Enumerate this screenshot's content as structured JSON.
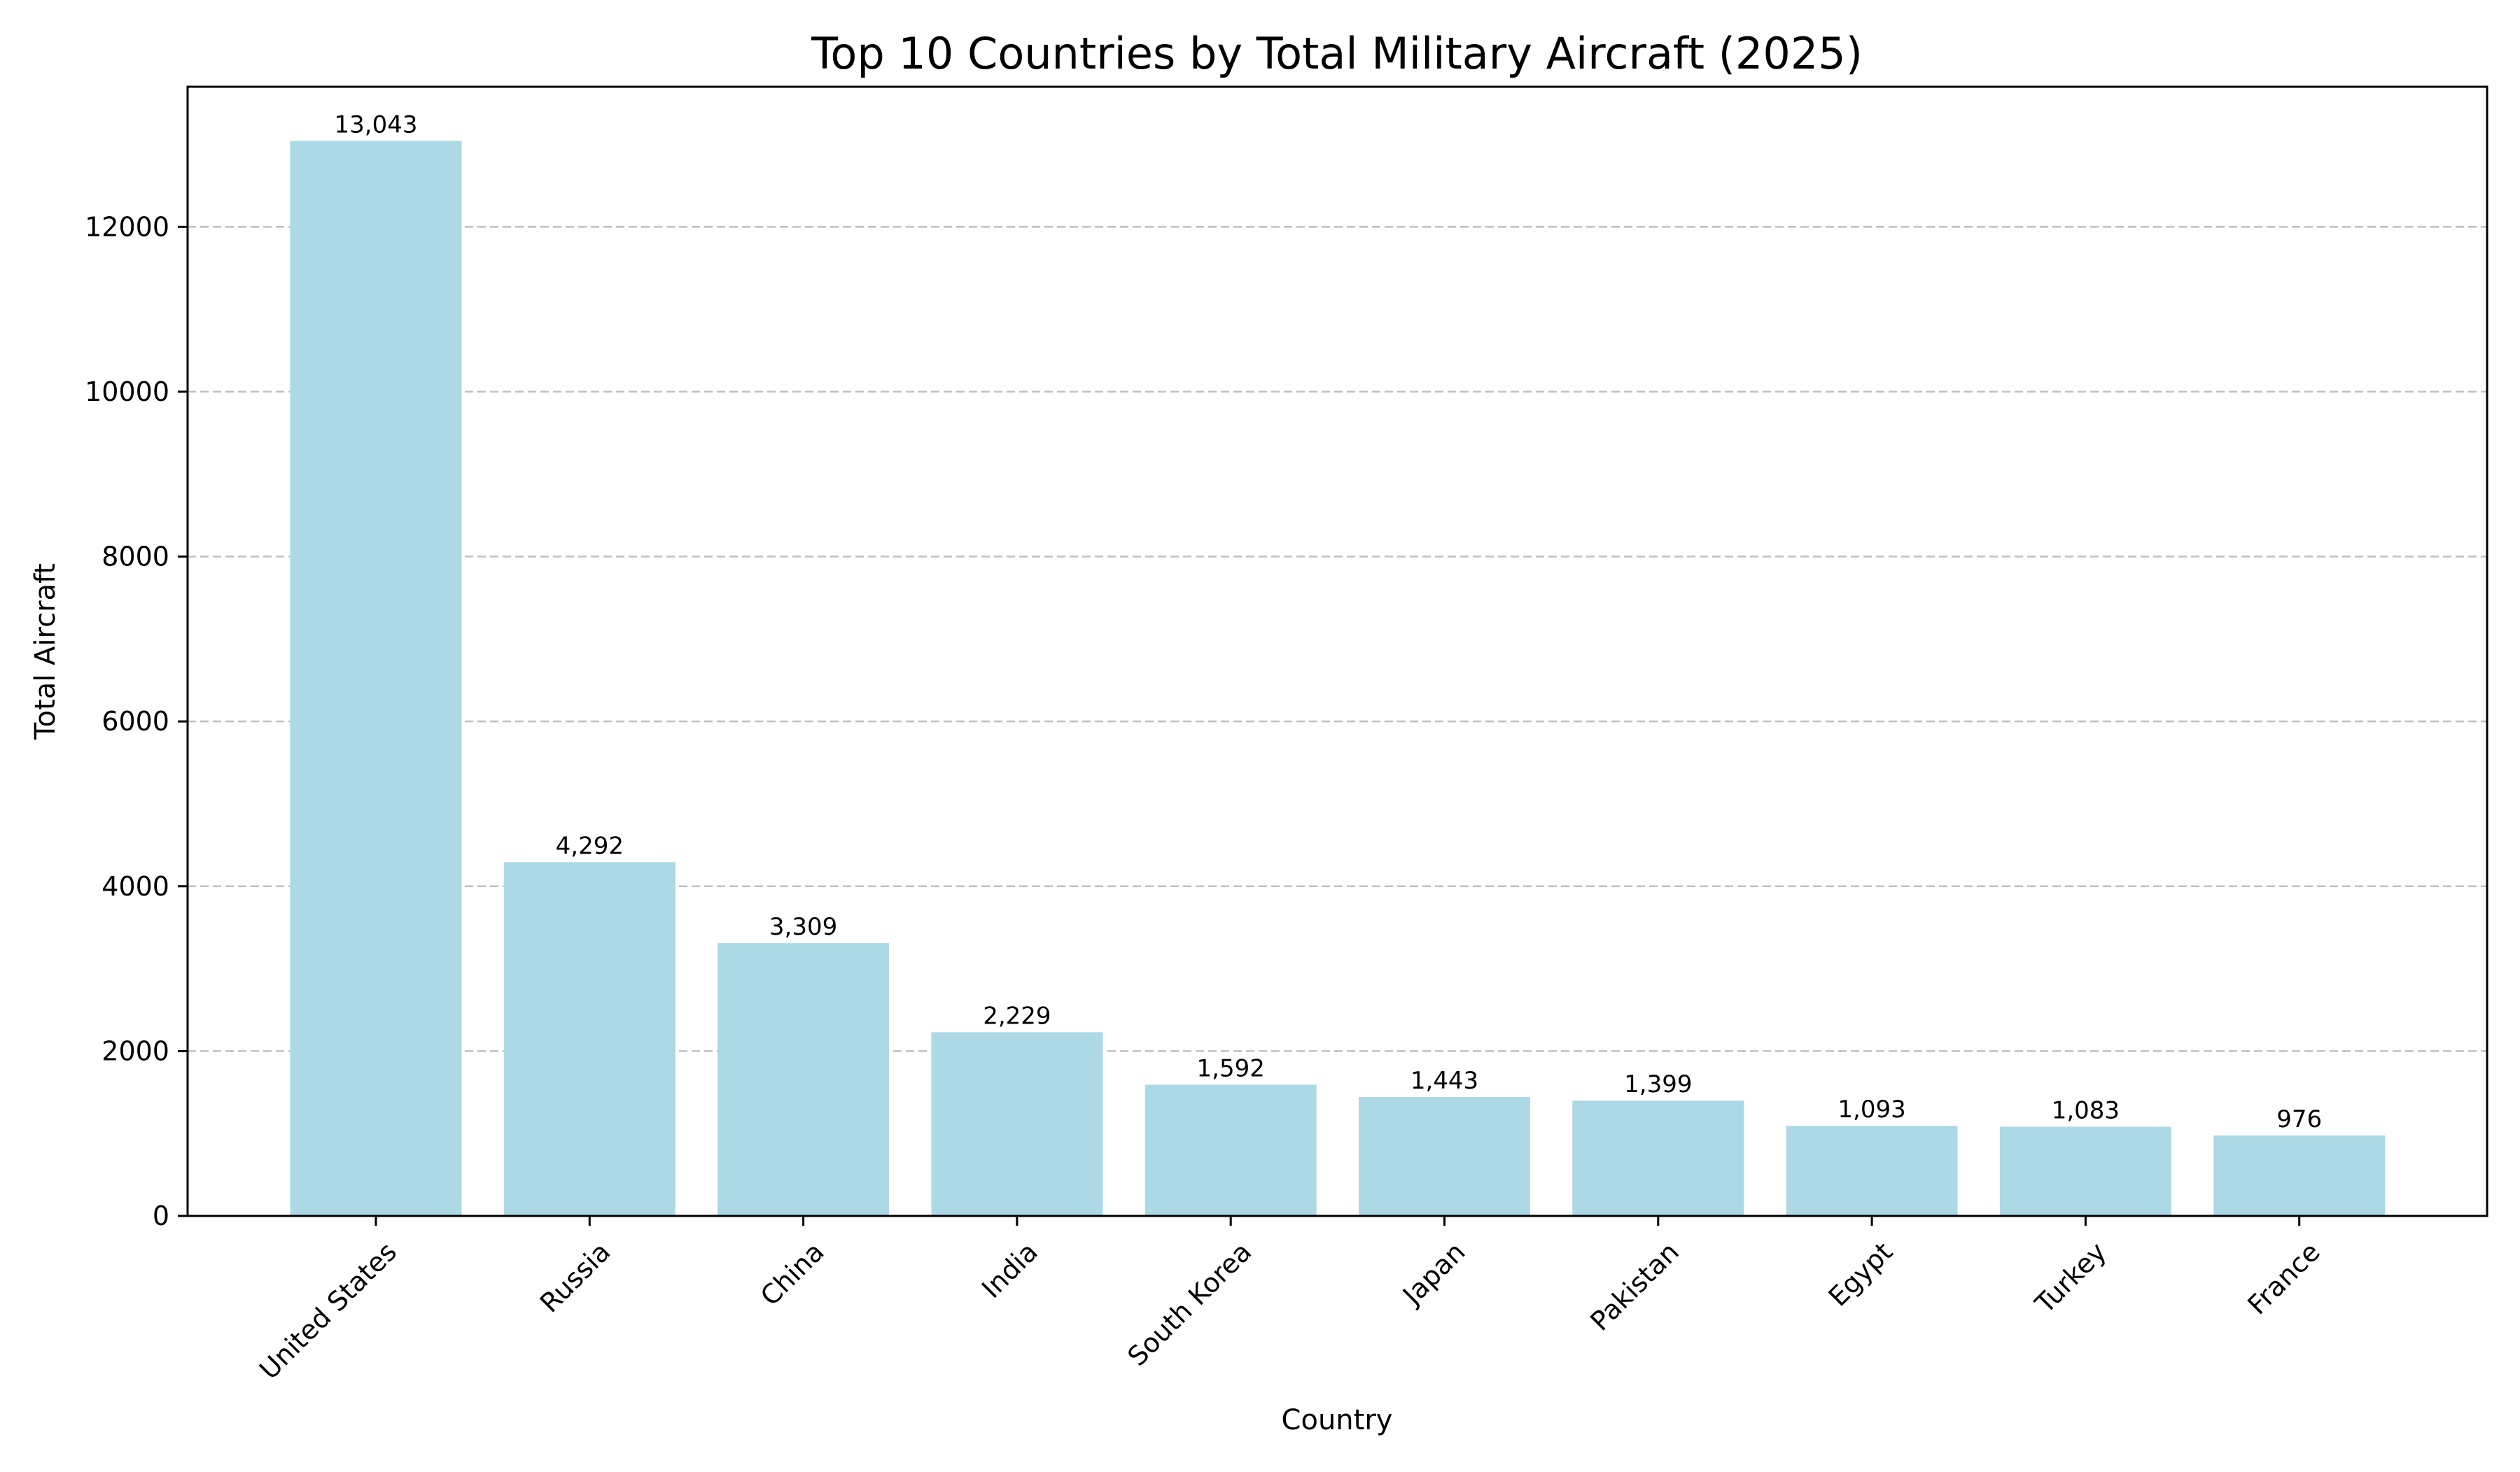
{
  "chart_data": {
    "type": "bar",
    "title": "Top 10 Countries by Total Military Aircraft (2025)",
    "xlabel": "Country",
    "ylabel": "Total Aircraft",
    "categories": [
      "United States",
      "Russia",
      "China",
      "India",
      "South Korea",
      "Japan",
      "Pakistan",
      "Egypt",
      "Turkey",
      "France"
    ],
    "values": [
      13043,
      4292,
      3309,
      2229,
      1592,
      1443,
      1399,
      1093,
      1083,
      976
    ],
    "data_labels": [
      "13,043",
      "4,292",
      "3,309",
      "2,229",
      "1,592",
      "1,443",
      "1,399",
      "1,093",
      "1,083",
      "976"
    ],
    "yticks": [
      0,
      2000,
      4000,
      6000,
      8000,
      10000,
      12000
    ],
    "ylim": [
      0,
      13700
    ],
    "grid": "y dashed",
    "legend": "none",
    "bar_color": "#add8e6"
  }
}
